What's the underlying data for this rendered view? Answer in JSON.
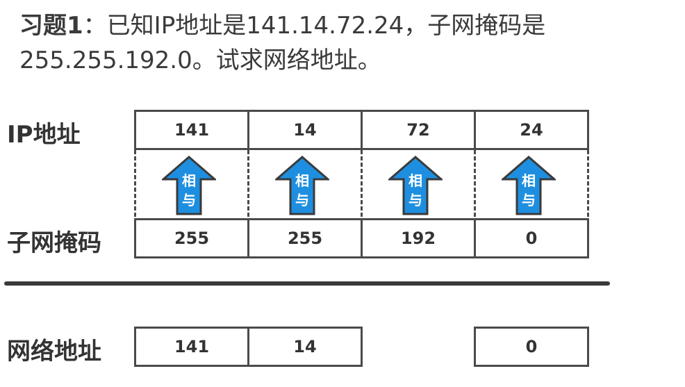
{
  "question": {
    "label": "习题1",
    "text": "：已知IP地址是141.14.72.24，子网掩码是255.255.192.0。试求网络地址。"
  },
  "rows": {
    "ip_label": "IP地址",
    "mask_label": "子网掩码",
    "network_label": "网络地址"
  },
  "ip_octets": [
    "141",
    "14",
    "72",
    "24"
  ],
  "mask_octets": [
    "255",
    "255",
    "192",
    "0"
  ],
  "network_octets": [
    "141",
    "14",
    "",
    "0"
  ],
  "arrow": {
    "line1": "相",
    "line2": "与",
    "fill": "#1e8fe0",
    "stroke": "#3a3a3a"
  }
}
